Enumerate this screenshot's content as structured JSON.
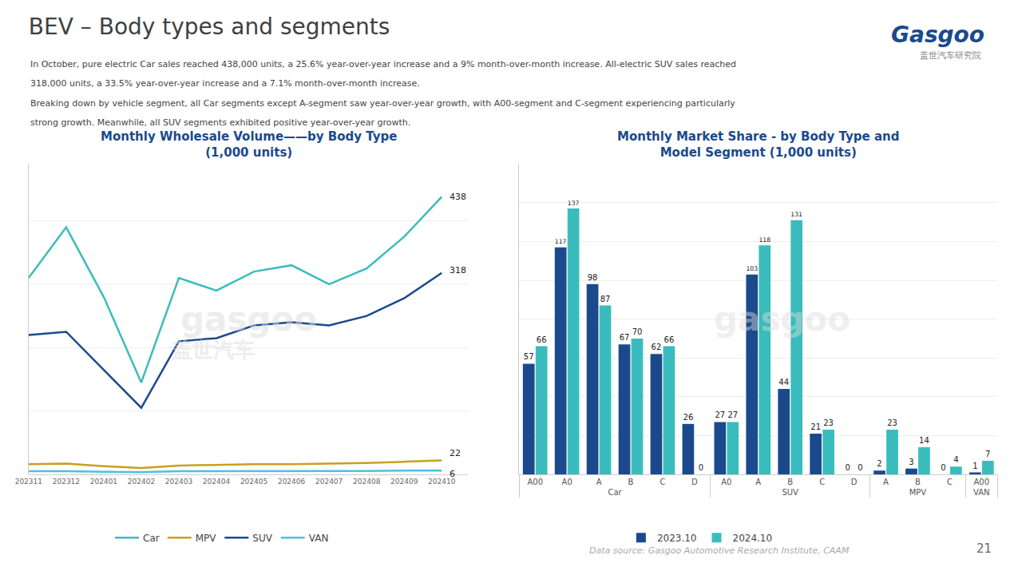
{
  "title": "BEV – Body types and segments",
  "subtitle": [
    "In October, pure electric Car sales reached 438,000 units, a 25.6% year-over-year increase and a 9% month-over-month increase. All-electric SUV sales reached",
    "318,000 units, a 33.5% year-over-year increase and a 7.1% month-over-month increase.",
    "Breaking down by vehicle segment, all Car segments except A-segment saw year-over-year growth, with A00-segment and C-segment experiencing particularly",
    "strong growth. Meanwhile, all SUV segments exhibited positive year-over-year growth."
  ],
  "annotations": [
    {
      "text": "Data source: Gasgoo Automotive Research Institute, CAAM"
    },
    {
      "text": "21"
    },
    {
      "text": "Gasgoo"
    },
    {
      "text": "盖世汽车研究院"
    }
  ],
  "chart_data": [
    {
      "type": "line",
      "title": [
        "Monthly Wholesale Volume——by Body Type",
        "(1,000 units)"
      ],
      "categories": [
        "202311",
        "202312",
        "202401",
        "202402",
        "202403",
        "202404",
        "202405",
        "202406",
        "202407",
        "202408",
        "202409",
        "202410"
      ],
      "series": [
        {
          "name": "Car",
          "color": "#3bbcbc",
          "values": [
            310,
            390,
            280,
            145,
            310,
            290,
            320,
            330,
            300,
            325,
            375,
            438
          ]
        },
        {
          "name": "MPV",
          "color": "#c8a020",
          "values": [
            16,
            17,
            13,
            10,
            14,
            15,
            16,
            16,
            17,
            18,
            20,
            22
          ]
        },
        {
          "name": "SUV",
          "color": "#1a4a8c",
          "values": [
            220,
            225,
            165,
            105,
            210,
            215,
            235,
            240,
            235,
            250,
            278,
            318
          ]
        },
        {
          "name": "VAN",
          "color": "#4cc0e0",
          "values": [
            5,
            5,
            4,
            3.5,
            5,
            5,
            5,
            5,
            5,
            5.5,
            6,
            6
          ]
        }
      ],
      "annotations": [
        {
          "text": "438",
          "series": "Car"
        },
        {
          "text": "318",
          "series": "SUV"
        },
        {
          "text": "22",
          "series": "MPV"
        },
        {
          "text": "6",
          "series": "VAN"
        },
        {
          "text": "gasgoo"
        },
        {
          "text": "盖世汽车"
        }
      ],
      "ylim": [
        0,
        490
      ],
      "yticks": [
        0,
        100,
        200,
        300,
        400
      ],
      "grid": true,
      "tick_labels": "x",
      "legend": "bottom"
    },
    {
      "type": "bar",
      "title": [
        "Monthly Market Share - by Body Type and",
        "Model Segment (1,000 units)"
      ],
      "categories": [
        [
          "Car",
          "A00"
        ],
        [
          "Car",
          "A0"
        ],
        [
          "Car",
          "A"
        ],
        [
          "Car",
          "B"
        ],
        [
          "Car",
          "C"
        ],
        [
          "Car",
          "D"
        ],
        [
          "SUV",
          "A0"
        ],
        [
          "SUV",
          "A"
        ],
        [
          "SUV",
          "B"
        ],
        [
          "SUV",
          "C"
        ],
        [
          "SUV",
          "D"
        ],
        [
          "MPV",
          "A"
        ],
        [
          "MPV",
          "B"
        ],
        [
          "MPV",
          "C"
        ],
        [
          "VAN",
          "A00"
        ]
      ],
      "series": [
        {
          "name": "2023.10",
          "color": "#1a4a8c",
          "values": [
            57,
            117,
            98,
            67,
            62,
            26,
            27,
            103,
            44,
            21,
            0,
            2,
            3,
            0,
            1
          ]
        },
        {
          "name": "2024.10",
          "color": "#3bbcbc",
          "values": [
            66,
            137,
            87,
            70,
            66,
            0,
            27,
            118,
            131,
            23,
            0,
            23,
            14,
            4,
            7
          ]
        }
      ],
      "annotations": [
        {
          "text": "gasgoo"
        }
      ],
      "ylim": [
        0,
        160
      ],
      "yticks": [
        0,
        20,
        40,
        60,
        80,
        100,
        120,
        140,
        160
      ],
      "grid": true,
      "tick_labels": "x",
      "data_labels": true,
      "legend": "bottom"
    }
  ]
}
